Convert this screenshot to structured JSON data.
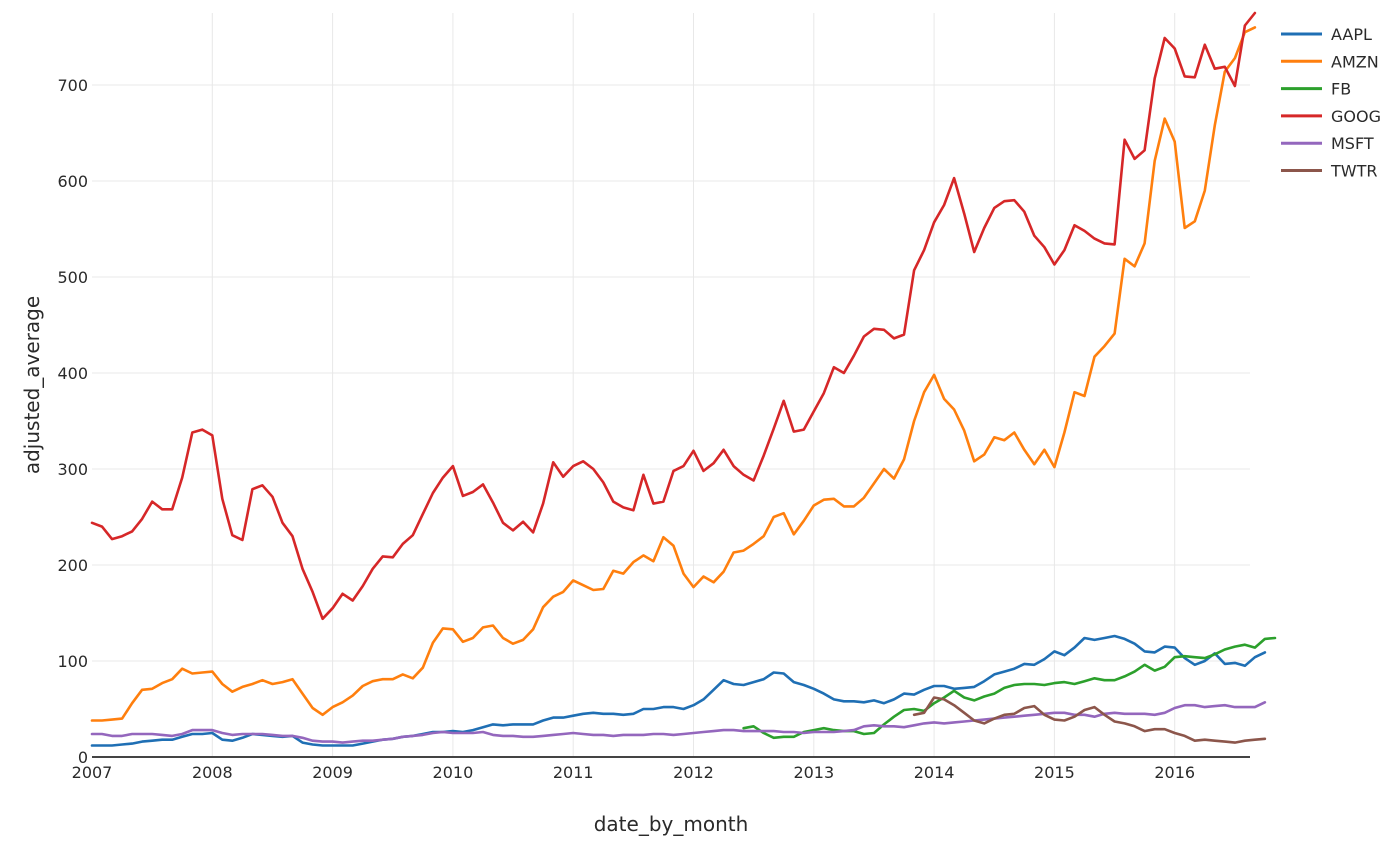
{
  "chart_data": {
    "type": "line",
    "title": "",
    "xlabel": "date_by_month",
    "ylabel": "adjusted_average",
    "x_start": "2007-01",
    "x_freq": "monthly",
    "x_ticks": [
      "2007",
      "2008",
      "2009",
      "2010",
      "2011",
      "2012",
      "2013",
      "2014",
      "2015",
      "2016"
    ],
    "y_ticks": [
      0,
      100,
      200,
      300,
      400,
      500,
      600,
      700
    ],
    "ylim": [
      0,
      775
    ],
    "xlim_months": [
      0,
      116
    ],
    "grid": true,
    "legend_position": "right-top",
    "series": [
      {
        "name": "AAPL",
        "color": "#1f6fb4",
        "start_month": 0,
        "values": [
          12,
          12,
          12,
          13,
          14,
          16,
          17,
          18,
          18,
          21,
          24,
          24,
          25,
          18,
          17,
          20,
          24,
          23,
          22,
          21,
          22,
          15,
          13,
          12,
          12,
          12,
          12,
          14,
          16,
          18,
          19,
          21,
          22,
          24,
          26,
          26,
          27,
          26,
          28,
          31,
          34,
          33,
          34,
          34,
          34,
          38,
          41,
          41,
          43,
          45,
          46,
          45,
          45,
          44,
          45,
          50,
          50,
          52,
          52,
          50,
          54,
          60,
          70,
          80,
          76,
          75,
          78,
          81,
          88,
          87,
          78,
          75,
          71,
          66,
          60,
          58,
          58,
          57,
          59,
          56,
          60,
          66,
          65,
          70,
          74,
          74,
          71,
          72,
          73,
          79,
          86,
          89,
          92,
          97,
          96,
          102,
          110,
          106,
          114,
          124,
          122,
          124,
          126,
          123,
          118,
          110,
          109,
          115,
          114,
          103,
          96,
          100,
          108,
          97,
          98,
          95,
          104,
          109
        ]
      },
      {
        "name": "AMZN",
        "color": "#ff7f0e",
        "start_month": 0,
        "values": [
          38,
          38,
          39,
          40,
          56,
          70,
          71,
          77,
          81,
          92,
          87,
          88,
          89,
          76,
          68,
          73,
          76,
          80,
          76,
          78,
          81,
          66,
          51,
          44,
          52,
          57,
          64,
          74,
          79,
          81,
          81,
          86,
          82,
          93,
          119,
          134,
          133,
          120,
          124,
          135,
          137,
          124,
          118,
          122,
          133,
          156,
          167,
          172,
          184,
          179,
          174,
          175,
          194,
          191,
          203,
          210,
          204,
          229,
          220,
          191,
          177,
          188,
          182,
          193,
          213,
          215,
          222,
          230,
          250,
          254,
          232,
          246,
          262,
          268,
          269,
          261,
          261,
          270,
          285,
          300,
          290,
          310,
          350,
          380,
          398,
          373,
          362,
          340,
          308,
          315,
          333,
          330,
          338,
          320,
          305,
          320,
          302,
          338,
          380,
          376,
          417,
          428,
          441,
          519,
          511,
          535,
          621,
          665,
          641,
          551,
          558,
          590,
          658,
          714,
          728,
          755,
          760
        ]
      },
      {
        "name": "FB",
        "color": "#2ca02c",
        "start_month": 65,
        "values": [
          30,
          32,
          25,
          20,
          21,
          21,
          26,
          28,
          30,
          28,
          27,
          27,
          24,
          25,
          34,
          42,
          49,
          50,
          48,
          56,
          62,
          69,
          62,
          59,
          63,
          66,
          72,
          75,
          76,
          76,
          75,
          77,
          78,
          76,
          79,
          82,
          80,
          80,
          84,
          89,
          96,
          90,
          94,
          104,
          105,
          104,
          103,
          107,
          112,
          115,
          117,
          114,
          123,
          124
        ]
      },
      {
        "name": "GOOG",
        "color": "#d62728",
        "start_month": 0,
        "values": [
          244,
          240,
          227,
          230,
          235,
          248,
          266,
          258,
          258,
          291,
          338,
          341,
          335,
          269,
          231,
          226,
          279,
          283,
          271,
          244,
          230,
          196,
          172,
          144,
          155,
          170,
          163,
          178,
          196,
          209,
          208,
          222,
          231,
          253,
          275,
          291,
          303,
          272,
          276,
          284,
          265,
          244,
          236,
          245,
          234,
          264,
          307,
          292,
          303,
          308,
          300,
          286,
          266,
          260,
          257,
          294,
          264,
          266,
          298,
          303,
          319,
          298,
          306,
          320,
          303,
          294,
          288,
          314,
          342,
          371,
          339,
          341,
          360,
          379,
          406,
          400,
          418,
          438,
          446,
          445,
          436,
          440,
          507,
          528,
          557,
          575,
          603,
          566,
          526,
          551,
          572,
          579,
          580,
          568,
          543,
          531,
          513,
          528,
          554,
          548,
          540,
          535,
          534,
          643,
          623,
          632,
          707,
          749,
          738,
          709,
          708,
          742,
          717,
          719,
          699,
          762,
          775
        ]
      },
      {
        "name": "MSFT",
        "color": "#9467bd",
        "start_month": 0,
        "values": [
          24,
          24,
          22,
          22,
          24,
          24,
          24,
          23,
          22,
          24,
          28,
          28,
          28,
          25,
          23,
          24,
          24,
          24,
          23,
          22,
          22,
          20,
          17,
          16,
          16,
          15,
          16,
          17,
          17,
          18,
          19,
          21,
          22,
          23,
          25,
          26,
          25,
          25,
          25,
          26,
          23,
          22,
          22,
          21,
          21,
          22,
          23,
          24,
          25,
          24,
          23,
          23,
          22,
          23,
          23,
          23,
          24,
          24,
          23,
          24,
          25,
          26,
          27,
          28,
          28,
          27,
          27,
          27,
          27,
          26,
          26,
          25,
          26,
          26,
          26,
          27,
          28,
          32,
          33,
          32,
          32,
          31,
          33,
          35,
          36,
          35,
          36,
          37,
          38,
          39,
          40,
          41,
          42,
          43,
          44,
          45,
          46,
          46,
          44,
          44,
          42,
          45,
          46,
          45,
          45,
          45,
          44,
          46,
          51,
          54,
          54,
          52,
          53,
          54,
          52,
          52,
          52,
          57
        ]
      },
      {
        "name": "TWTR",
        "color": "#8c564b",
        "start_month": 82,
        "values": [
          44,
          46,
          62,
          60,
          54,
          46,
          38,
          35,
          40,
          44,
          45,
          51,
          53,
          44,
          39,
          38,
          42,
          49,
          52,
          44,
          37,
          35,
          32,
          27,
          29,
          29,
          25,
          22,
          17,
          18,
          17,
          16,
          15,
          17,
          18,
          19
        ]
      }
    ]
  },
  "legend": {
    "items": [
      {
        "label": "AAPL",
        "color": "#1f6fb4"
      },
      {
        "label": "AMZN",
        "color": "#ff7f0e"
      },
      {
        "label": "FB",
        "color": "#2ca02c"
      },
      {
        "label": "GOOG",
        "color": "#d62728"
      },
      {
        "label": "MSFT",
        "color": "#9467bd"
      },
      {
        "label": "TWTR",
        "color": "#8c564b"
      }
    ]
  },
  "axes": {
    "x_title": "date_by_month",
    "y_title": "adjusted_average"
  }
}
